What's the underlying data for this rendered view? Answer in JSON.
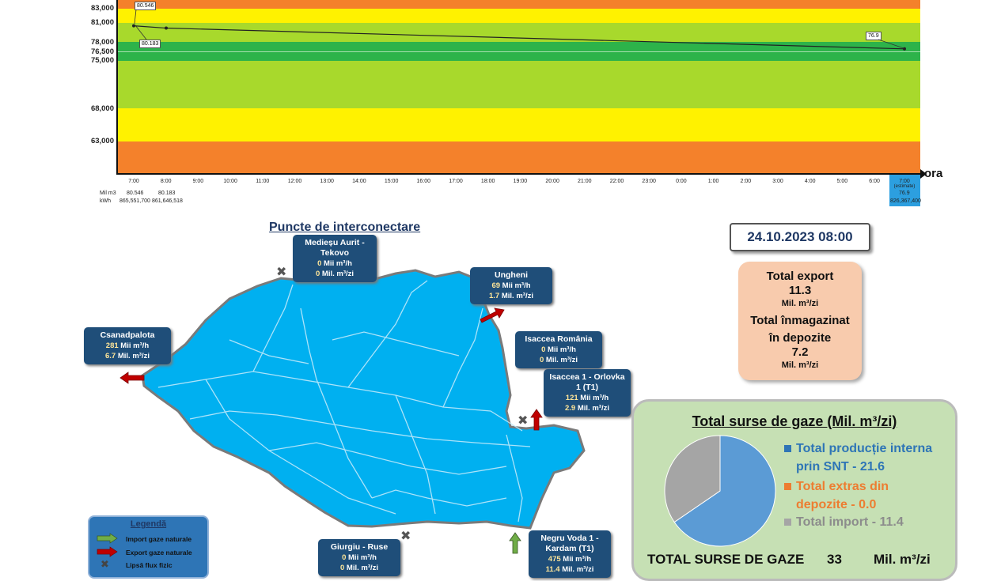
{
  "chart": {
    "y_ticks": [
      "83,000",
      "81,000",
      "78,000",
      "76,500",
      "75,000",
      "68,000",
      "63,000"
    ],
    "x_ticks": [
      "7:00",
      "8:00",
      "9:00",
      "10:00",
      "11:00",
      "12:00",
      "13:00",
      "14:00",
      "15:00",
      "16:00",
      "17:00",
      "18:00",
      "19:00",
      "20:00",
      "21:00",
      "22:00",
      "23:00",
      "0:00",
      "1:00",
      "2:00",
      "3:00",
      "4:00",
      "5:00",
      "6:00"
    ],
    "last_tick": "7:00",
    "last_tick_sub": "(estimate)",
    "axis_label": "ora",
    "row_label_mil": "Mil m3",
    "row_label_kwh": "kWh",
    "mil_values": [
      "80.546",
      "80.183",
      "76.9"
    ],
    "kwh_values": [
      "865,551,700",
      "861,646,518",
      "826,367,400"
    ],
    "point_labels": [
      "80.546",
      "80.183",
      "76.9"
    ]
  },
  "chart_data": {
    "type": "line",
    "x": [
      "7:00",
      "8:00",
      "7:00 (estimate)"
    ],
    "values": [
      80.546,
      80.183,
      76.9
    ],
    "ylim": [
      58000,
      85000
    ],
    "xlabel": "ora",
    "bands": [
      "orange",
      "yellow",
      "light-green",
      "green",
      "light-green",
      "yellow",
      "orange"
    ]
  },
  "map": {
    "title": "Puncte de interconectare",
    "points": {
      "mediesu": {
        "name1": "Medieșu Aurit -",
        "name2": "Tekovo",
        "v1_num": "0",
        "v1_unit": "Mii  m³/h",
        "v2_num": "0",
        "v2_unit": "Mil. m³/zi"
      },
      "ungheni": {
        "name1": "Ungheni",
        "v1_num": "69",
        "v1_unit": "Mii  m³/h",
        "v2_num": "1.7",
        "v2_unit": "Mil. m³/zi"
      },
      "csanadpalota": {
        "name1": "Csanadpalota",
        "v1_num": "281",
        "v1_unit": "Mii  m³/h",
        "v2_num": "6.7",
        "v2_unit": "Mil. m³/zi"
      },
      "isaccea_ro": {
        "name1": "Isaccea România",
        "v1_num": "0",
        "v1_unit": "Mii  m³/h",
        "v2_num": "0",
        "v2_unit": "Mil. m³/zi"
      },
      "isaccea_t1": {
        "name1": "Isaccea 1 - Orlovka",
        "name2": "1 (T1)",
        "v1_num": "121",
        "v1_unit": "Mii  m³/h",
        "v2_num": "2.9",
        "v2_unit": "Mil. m³/zi"
      },
      "giurgiu": {
        "name1": "Giurgiu - Ruse",
        "v1_num": "0",
        "v1_unit": "Mii  m³/h",
        "v2_num": "0",
        "v2_unit": "Mil. m³/zi"
      },
      "negru_voda": {
        "name1": "Negru Voda 1 -",
        "name2": "Kardam (T1)",
        "v1_num": "475",
        "v1_unit": "Mii  m³/h",
        "v2_num": "11.4",
        "v2_unit": "Mil. m³/zi"
      }
    }
  },
  "legend": {
    "title": "Legendă",
    "import": "Import gaze naturale",
    "export": "Export gaze naturale",
    "none": "Lipsă flux fizic"
  },
  "datetime": "24.10.2023 08:00",
  "export_box": {
    "export_label": "Total export",
    "export_value": "11.3",
    "unit": "Mil. m³/zi",
    "storage_label1": "Total înmagazinat",
    "storage_label2": "în depozite",
    "storage_value": "7.2",
    "unit2": "Mil. m³/zi"
  },
  "sources": {
    "title": "Total surse de gaze  (Mil. m³/zi)",
    "items": [
      {
        "line1": "Total producție interna",
        "line2": "prin SNT - 21.6",
        "color": "#2e75b6"
      },
      {
        "line1": "Total extras din",
        "line2": "depozite - 0.0",
        "color": "#ed7d31"
      },
      {
        "line1": "Total import - 11.4",
        "line2": "",
        "color": "#a5a5a5"
      }
    ],
    "total_label": "TOTAL SURSE DE GAZE",
    "total_value": "33",
    "total_unit": "Mil. m³/zi"
  },
  "sources_chart_data": {
    "type": "pie",
    "categories": [
      "Total producție interna prin SNT",
      "Total extras din depozite",
      "Total import"
    ],
    "values": [
      21.6,
      0.0,
      11.4
    ],
    "colors": [
      "#5b9bd5",
      "#ed7d31",
      "#a5a5a5"
    ]
  }
}
